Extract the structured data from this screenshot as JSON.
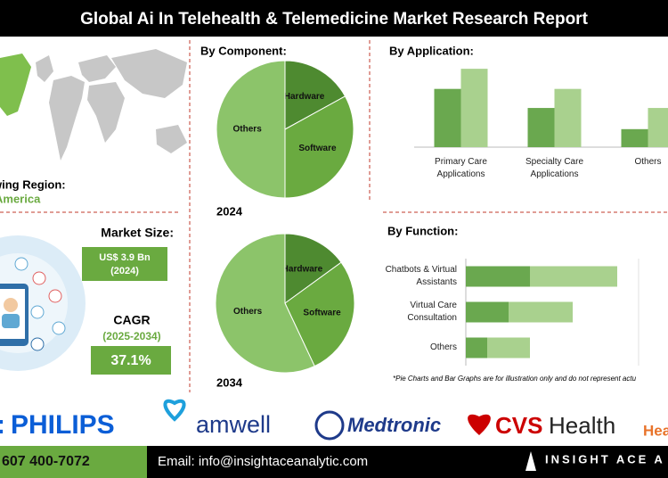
{
  "header": {
    "title": "Global Ai In Telehealth & Telemedicine Market Research Report"
  },
  "region": {
    "label": "wing Region:",
    "value": "America"
  },
  "market_size": {
    "label": "Market Size:",
    "value": "US$ 3.9 Bn",
    "year": "(2024)"
  },
  "cagr": {
    "label": "CAGR",
    "period": "(2025-2034)",
    "value": "37.1%"
  },
  "chart_data": [
    {
      "type": "pie",
      "title": "By Component:",
      "caption": "2024",
      "categories": [
        "Hardware",
        "Software",
        "Others"
      ],
      "values": [
        17,
        33,
        50
      ],
      "colors": [
        "#4e8a30",
        "#6aaa40",
        "#8cc46a"
      ]
    },
    {
      "type": "pie",
      "caption": "2034",
      "categories": [
        "Hardware",
        "Software",
        "Others"
      ],
      "values": [
        15,
        28,
        57
      ],
      "colors": [
        "#4e8a30",
        "#6aaa40",
        "#8cc46a"
      ]
    },
    {
      "type": "bar",
      "title": "By Application:",
      "orientation": "vertical",
      "categories": [
        "Primary Care Applications",
        "Specialty Care Applications",
        "Others"
      ],
      "series": [
        {
          "color": "#6aa84f",
          "values": [
            55,
            37,
            17
          ]
        },
        {
          "color": "#a9d18e",
          "values": [
            74,
            55,
            37
          ]
        }
      ],
      "ylim": [
        0,
        80
      ]
    },
    {
      "type": "bar",
      "title": "By Function:",
      "orientation": "horizontal",
      "stacked": true,
      "categories": [
        "Chatbots & Virtual Assistants",
        "Virtual Care Consultation",
        "Others"
      ],
      "series": [
        {
          "color": "#6aa84f",
          "values": [
            72,
            48,
            24
          ]
        },
        {
          "color": "#a9d18e",
          "values": [
            98,
            72,
            48
          ]
        }
      ],
      "xlim": [
        0,
        200
      ]
    }
  ],
  "note": "*Pie Charts and Bar Graphs are for illustration only and do not represent actu",
  "logos": [
    ":",
    "PHILIPS",
    "amwell",
    "Medtronic",
    "CVS",
    "Health",
    "Hea"
  ],
  "footer": {
    "phone": "607 400-7072",
    "email": "Email: info@insightaceanalytic.com",
    "brand": "INSIGHT ACE A"
  }
}
